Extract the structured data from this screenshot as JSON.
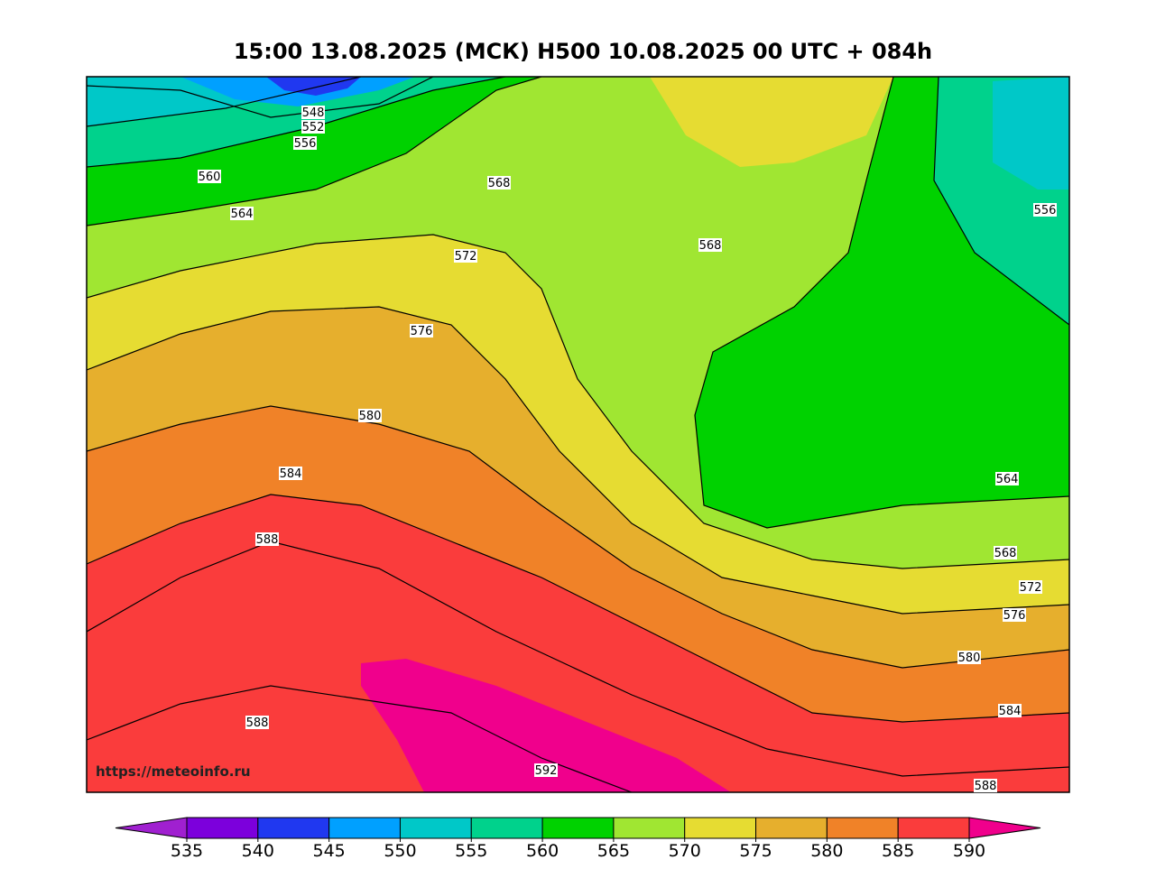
{
  "title": "15:00 13.08.2025 (МСК) H500  10.08.2025 00 UTC + 084h",
  "url": "https://meteoinfo.ru",
  "contour_labels": [
    548,
    552,
    556,
    560,
    564,
    568,
    572,
    576,
    580,
    584,
    588,
    568,
    556,
    564,
    568,
    572,
    576,
    580,
    584,
    588,
    592,
    588
  ],
  "colorbar": {
    "ticks": [
      535,
      540,
      545,
      550,
      555,
      560,
      565,
      570,
      575,
      580,
      585,
      590
    ],
    "colors": [
      "#7c00dc",
      "#2038f0",
      "#00a0ff",
      "#00c8c8",
      "#00d28c",
      "#00d200",
      "#a0e632",
      "#e6dc32",
      "#e6af2d",
      "#f08228",
      "#fa3c3c"
    ],
    "under_color": "#a020d0",
    "over_color": "#f0008c"
  }
}
